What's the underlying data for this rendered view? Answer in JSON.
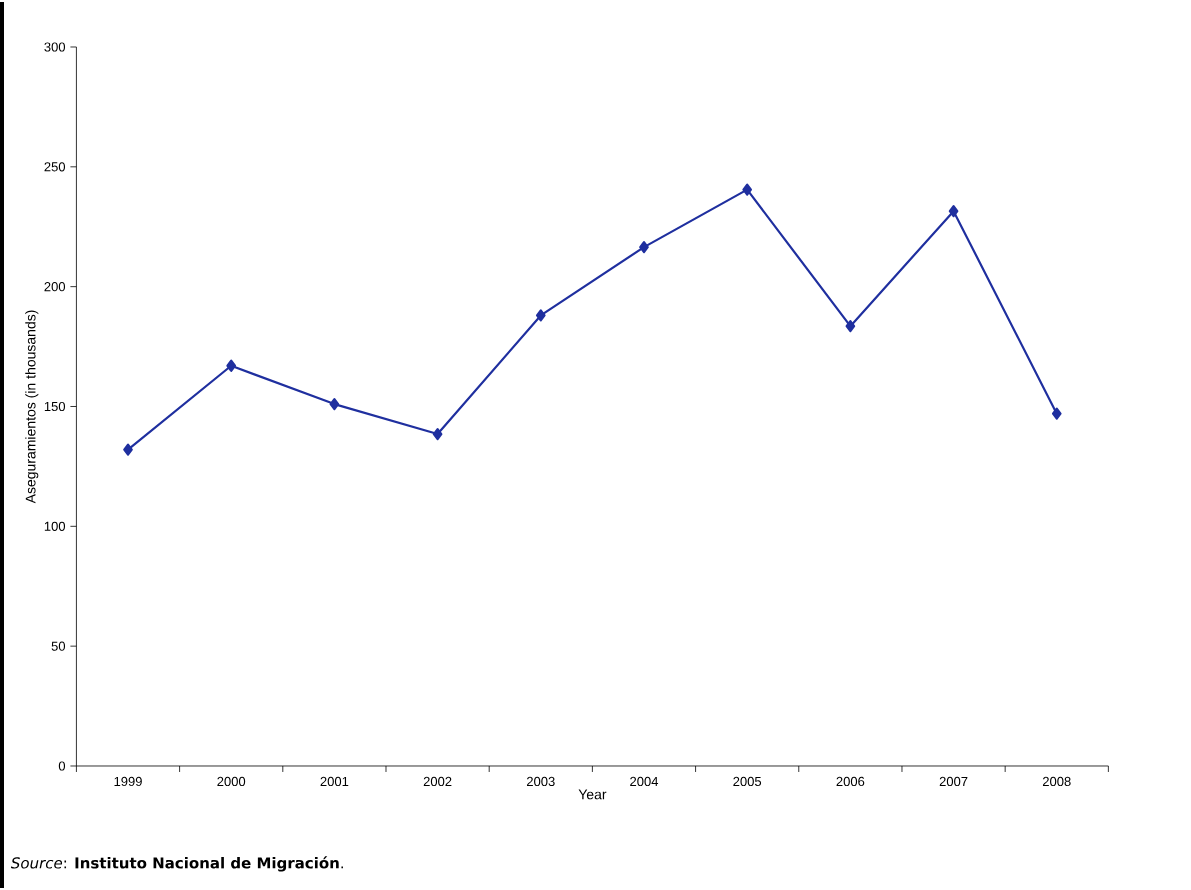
{
  "chart_data": {
    "type": "line",
    "xlabel": "Year",
    "ylabel": "Aseguramientos (in thousands)",
    "categories": [
      "1999",
      "2000",
      "2001",
      "2002",
      "2003",
      "2004",
      "2005",
      "2006",
      "2007",
      "2008"
    ],
    "series": [
      {
        "color": "#1f2f9f",
        "values": [
          132,
          167,
          151,
          138.5,
          188,
          216.5,
          240.5,
          183.5,
          231.5,
          147
        ]
      }
    ],
    "ylim": [
      0,
      300
    ],
    "yticks": [
      0,
      50,
      100,
      150,
      200,
      250,
      300
    ],
    "grid": false,
    "marker": "diamond",
    "line_style": "solid",
    "annotations": [
      "*Source*: **Instituto Nacional de Migración**."
    ]
  }
}
